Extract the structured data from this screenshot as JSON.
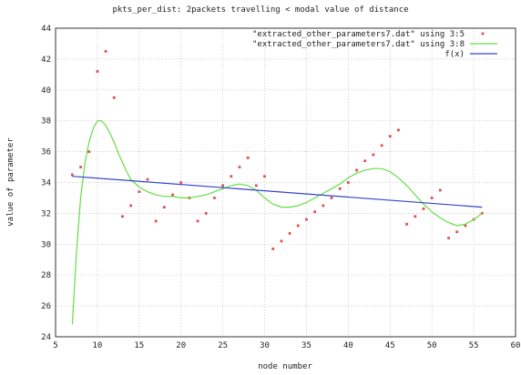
{
  "chart_data": {
    "type": "scatter",
    "title": "pkts_per_dist: 2packets travelling < modal value of distance",
    "xlabel": "node number",
    "ylabel": "value of parameter",
    "xlim": [
      5,
      60
    ],
    "ylim": [
      24,
      44
    ],
    "xticks": [
      5,
      10,
      15,
      20,
      25,
      30,
      35,
      40,
      45,
      50,
      55,
      60
    ],
    "yticks": [
      24,
      26,
      28,
      30,
      32,
      34,
      36,
      38,
      40,
      42,
      44
    ],
    "grid": true,
    "legend_position": "top-right",
    "series": [
      {
        "name": "\"extracted_other_parameters7.dat\" using 3:5",
        "style": "points",
        "color": "#e05050",
        "x": [
          7,
          8,
          9,
          10,
          11,
          12,
          13,
          14,
          15,
          16,
          17,
          18,
          19,
          20,
          21,
          22,
          23,
          24,
          25,
          26,
          27,
          28,
          29,
          30,
          31,
          32,
          33,
          34,
          35,
          36,
          37,
          38,
          39,
          40,
          41,
          42,
          43,
          44,
          45,
          46,
          47,
          48,
          49,
          50,
          51,
          52,
          53,
          54,
          55,
          56
        ],
        "y": [
          34.5,
          35.0,
          36.0,
          41.2,
          42.5,
          39.5,
          31.8,
          32.5,
          33.4,
          34.2,
          31.5,
          32.4,
          33.2,
          34.0,
          33.0,
          31.5,
          32.0,
          33.0,
          33.8,
          34.4,
          35.0,
          35.6,
          33.8,
          34.4,
          29.7,
          30.2,
          30.7,
          31.2,
          31.6,
          32.1,
          32.5,
          33.0,
          33.6,
          34.0,
          34.8,
          35.4,
          35.8,
          36.4,
          37.0,
          37.4,
          31.3,
          31.8,
          32.3,
          33.0,
          33.5,
          30.4,
          30.8,
          31.2,
          31.6,
          32.0
        ]
      },
      {
        "name": "\"extracted_other_parameters7.dat\" using 3:8",
        "style": "line",
        "color": "#66dd44",
        "x": [
          7,
          7.5,
          8,
          8.5,
          9,
          9.5,
          10,
          10.5,
          11,
          11.5,
          12,
          12.5,
          13,
          13.5,
          14,
          15,
          16,
          17,
          18,
          19,
          20,
          21,
          22,
          23,
          24,
          25,
          26,
          27,
          28,
          29,
          30,
          31,
          32,
          33,
          34,
          35,
          36,
          37,
          38,
          39,
          40,
          41,
          42,
          43,
          44,
          45,
          46,
          47,
          48,
          49,
          50,
          51,
          52,
          53,
          54,
          55,
          56
        ],
        "y": [
          24.8,
          29.5,
          33.0,
          35.2,
          36.6,
          37.5,
          38.0,
          38.0,
          37.7,
          37.2,
          36.6,
          35.9,
          35.3,
          34.7,
          34.2,
          33.7,
          33.4,
          33.2,
          33.1,
          33.1,
          33.0,
          33.0,
          33.1,
          33.2,
          33.4,
          33.6,
          33.8,
          33.9,
          33.8,
          33.5,
          33.0,
          32.6,
          32.4,
          32.4,
          32.5,
          32.7,
          33.0,
          33.3,
          33.6,
          33.9,
          34.3,
          34.6,
          34.8,
          34.9,
          34.9,
          34.7,
          34.3,
          33.8,
          33.2,
          32.6,
          32.1,
          31.7,
          31.4,
          31.2,
          31.3,
          31.6,
          32.0
        ]
      },
      {
        "name": "f(x)",
        "style": "line",
        "color": "#3344cc",
        "x": [
          7,
          56
        ],
        "y": [
          34.4,
          32.4
        ]
      }
    ]
  }
}
